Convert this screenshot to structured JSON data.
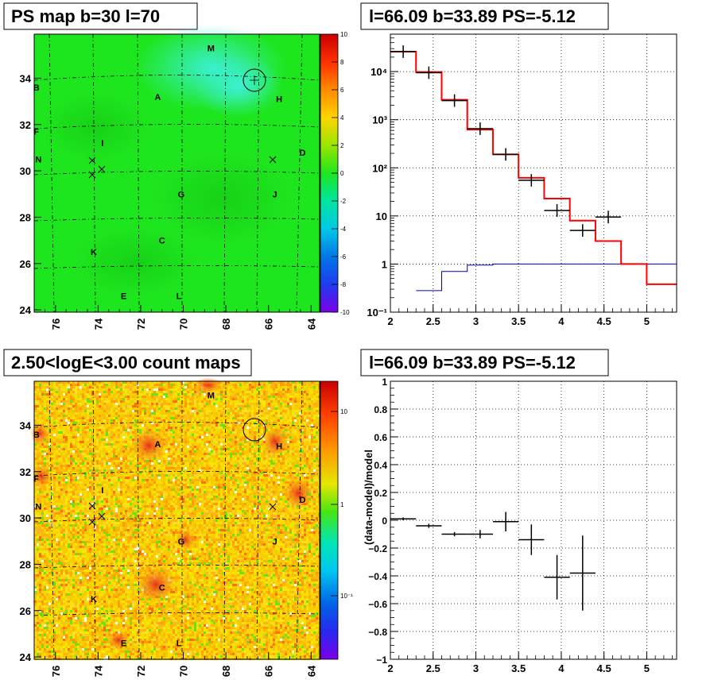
{
  "panels": {
    "tl_title": "PS map b=30 l=70",
    "tr_title": "l=66.09 b=33.89 PS=-5.12",
    "bl_title": "2.50<logE<3.00 count maps",
    "br_title": "l=66.09 b=33.89 PS=-5.12",
    "br_ylabel": "(data-model)/model"
  },
  "colors": {
    "green_map": "#1ee61e",
    "model_line": "#ff0000",
    "bg_line": "#0000cc",
    "data": "#000000"
  },
  "chart_data": [
    {
      "type": "heatmap",
      "title": "PS map b=30 l=70",
      "x_ticks": [
        "76",
        "74",
        "72",
        "70",
        "68",
        "66",
        "64"
      ],
      "y_ticks": [
        "24",
        "26",
        "28",
        "30",
        "32",
        "34"
      ],
      "colorbar": {
        "min": -10,
        "max": 10,
        "ticks": [
          "10",
          "8",
          "6",
          "4",
          "2",
          "0",
          "-2",
          "-4",
          "-6",
          "-8",
          "-10"
        ]
      },
      "sources": [
        {
          "label": "M",
          "l": 68.7,
          "b": 35.3
        },
        {
          "label": "B",
          "l": 76.9,
          "b": 33.6
        },
        {
          "label": "A",
          "l": 71.2,
          "b": 33.2
        },
        {
          "label": "H",
          "l": 65.5,
          "b": 33.1
        },
        {
          "label": "F",
          "l": 76.9,
          "b": 31.7
        },
        {
          "label": "I",
          "l": 73.8,
          "b": 31.2
        },
        {
          "label": "D",
          "l": 64.4,
          "b": 30.8
        },
        {
          "label": "N",
          "l": 76.8,
          "b": 30.5
        },
        {
          "label": "G",
          "l": 70.1,
          "b": 29.0
        },
        {
          "label": "J",
          "l": 65.7,
          "b": 29.0
        },
        {
          "label": "C",
          "l": 71.0,
          "b": 27.0
        },
        {
          "label": "K",
          "l": 74.2,
          "b": 26.5
        },
        {
          "label": "E",
          "l": 72.8,
          "b": 24.6
        },
        {
          "label": "L",
          "l": 70.2,
          "b": 24.6
        }
      ]
    },
    {
      "type": "line",
      "title": "l=66.09 b=33.89 PS=-5.12",
      "xlim": [
        2,
        5.35
      ],
      "y_scale": "log",
      "ylim": [
        0.1,
        60000
      ],
      "x_ticks": [
        "2",
        "2.5",
        "3",
        "3.5",
        "4",
        "4.5",
        "5"
      ],
      "y_ticks": [
        "10⁻¹",
        "1",
        "10",
        "10²",
        "10³",
        "10⁴"
      ],
      "series": [
        {
          "role": "model_total",
          "step_edges": [
            2.0,
            2.3,
            2.6,
            2.9,
            3.2,
            3.5,
            3.8,
            4.1,
            4.4,
            4.7,
            5.0,
            5.35
          ],
          "values": [
            26000,
            9800,
            2600,
            620,
            190,
            62,
            23,
            8,
            3,
            1.0,
            0.38
          ]
        },
        {
          "role": "background",
          "step_edges": [
            2.3,
            2.6,
            2.9,
            3.2,
            3.5,
            5.35
          ],
          "values": [
            0.28,
            0.7,
            0.95,
            1.0,
            1.0
          ]
        },
        {
          "role": "data",
          "points": [
            {
              "x": 2.15,
              "y": 26000
            },
            {
              "x": 2.45,
              "y": 9500
            },
            {
              "x": 2.75,
              "y": 2500
            },
            {
              "x": 3.05,
              "y": 650
            },
            {
              "x": 3.35,
              "y": 190
            },
            {
              "x": 3.65,
              "y": 55
            },
            {
              "x": 3.95,
              "y": 13
            },
            {
              "x": 4.25,
              "y": 5
            },
            {
              "x": 4.55,
              "y": 9.5
            }
          ]
        }
      ]
    },
    {
      "type": "heatmap",
      "title": "2.50<logE<3.00 count maps",
      "x_ticks": [
        "76",
        "74",
        "72",
        "70",
        "68",
        "66",
        "64"
      ],
      "y_ticks": [
        "24",
        "26",
        "28",
        "30",
        "32",
        "34"
      ],
      "colorbar": {
        "scale": "log",
        "ticks": [
          "10",
          "1",
          "10⁻¹"
        ]
      },
      "sources_same_as_panel": 1
    },
    {
      "type": "scatter",
      "title": "l=66.09 b=33.89 PS=-5.12",
      "ylabel": "(data-model)/model",
      "xlim": [
        2,
        5.35
      ],
      "ylim": [
        -1,
        1
      ],
      "x_ticks": [
        "2",
        "2.5",
        "3",
        "3.5",
        "4",
        "4.5",
        "5"
      ],
      "y_ticks": [
        "1",
        "0.8",
        "0.6",
        "0.4",
        "0.2",
        "0",
        "−0.2",
        "−0.4",
        "−0.6",
        "−0.8",
        "−1"
      ],
      "points": [
        {
          "x": 2.15,
          "y": 0.01,
          "dx": 0.15,
          "dy": 0.01
        },
        {
          "x": 2.45,
          "y": -0.04,
          "dx": 0.15,
          "dy": 0.015
        },
        {
          "x": 2.75,
          "y": -0.1,
          "dx": 0.15,
          "dy": 0.015
        },
        {
          "x": 3.05,
          "y": -0.1,
          "dx": 0.15,
          "dy": 0.03
        },
        {
          "x": 3.35,
          "y": -0.01,
          "dx": 0.15,
          "dy": 0.07
        },
        {
          "x": 3.65,
          "y": -0.14,
          "dx": 0.15,
          "dy": 0.11
        },
        {
          "x": 3.95,
          "y": -0.41,
          "dx": 0.15,
          "dy": 0.16
        },
        {
          "x": 4.25,
          "y": -0.38,
          "dx": 0.15,
          "dy": 0.27
        }
      ]
    }
  ]
}
